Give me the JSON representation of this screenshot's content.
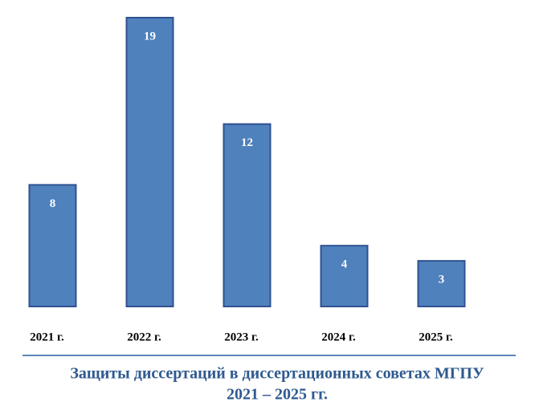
{
  "chart_data": {
    "type": "bar",
    "title": "Защиты диссертаций в диссертационных советах МГПУ",
    "subtitle": "2021 – 2025 гг.",
    "categories": [
      "2021 г.",
      "2022 г.",
      "2023 г.",
      "2024 г.",
      "2025 г."
    ],
    "values": [
      8,
      19,
      12,
      4,
      3
    ],
    "color": "#4f81bd",
    "ylim": [
      0,
      19
    ]
  }
}
